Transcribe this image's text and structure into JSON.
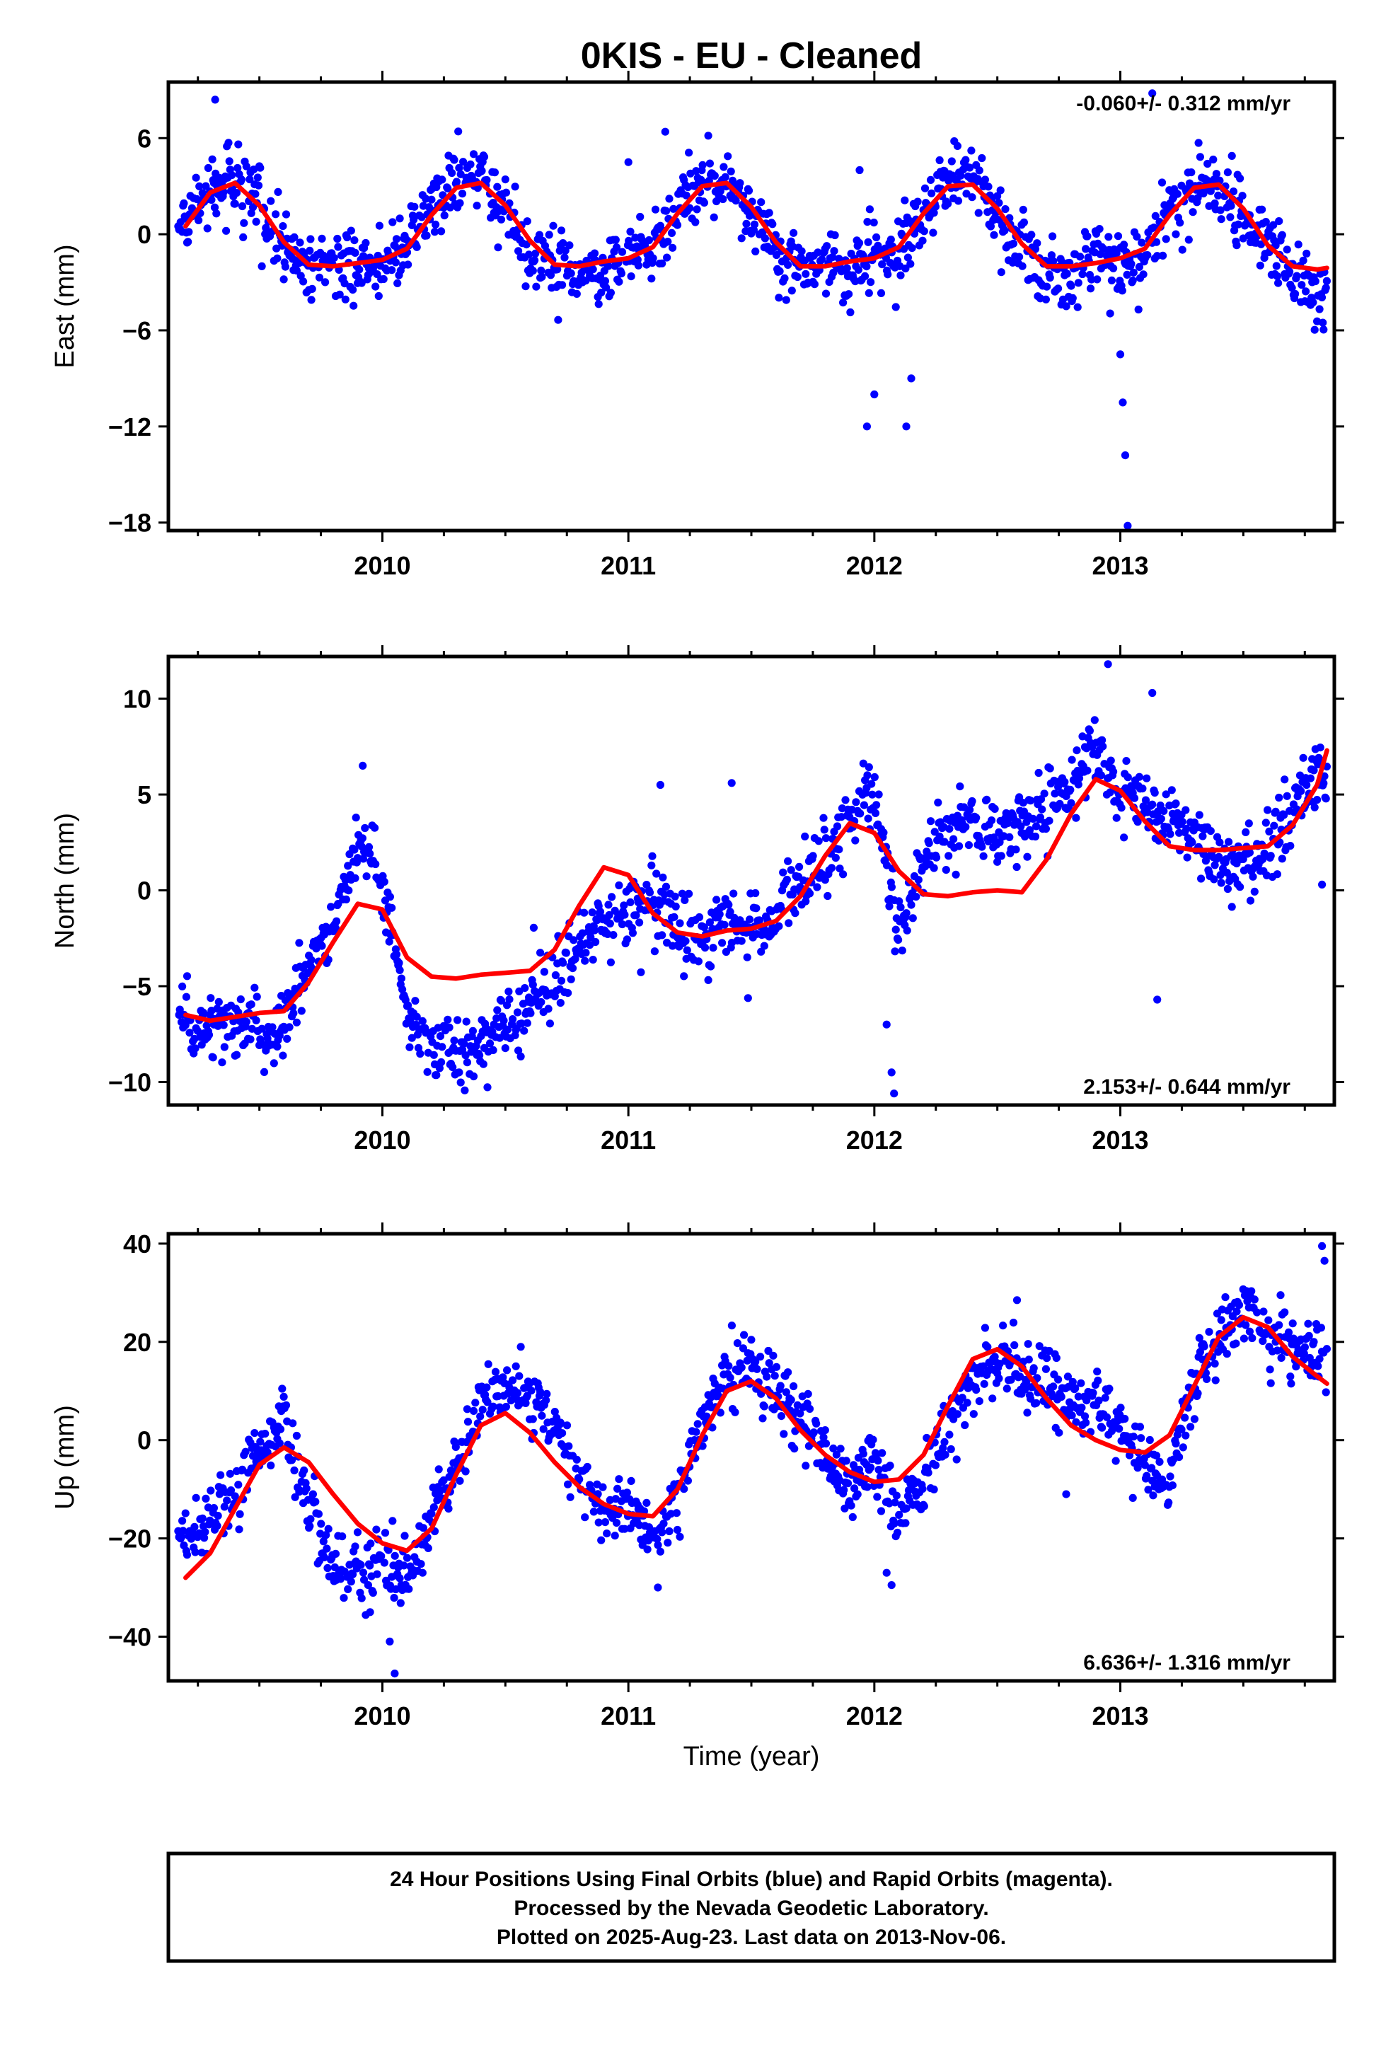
{
  "title": "0KIS  - EU - Cleaned",
  "xlabel": "Time (year)",
  "footer": {
    "line1": "24 Hour Positions Using Final Orbits (blue) and Rapid Orbits (magenta).",
    "line2": "Processed by the Nevada Geodetic Laboratory.",
    "line3": "Plotted on 2025-Aug-23. Last data on 2013-Nov-06."
  },
  "colors": {
    "data_points": "#0000ff",
    "model_fit": "#ff0000",
    "frame": "#000000"
  },
  "chart_data": [
    {
      "type": "scatter",
      "component": "east",
      "ylabel": "East (mm)",
      "xlim": [
        2009.13,
        2013.87
      ],
      "ylim": [
        -18.5,
        9.5
      ],
      "yticks": [
        -18,
        -12,
        -6,
        0,
        6
      ],
      "xticks": [
        2010,
        2011,
        2012,
        2013
      ],
      "rate_label": "-0.060+/- 0.312 mm/yr",
      "rate_label_position": "top-right",
      "series": [
        {
          "kind": "model",
          "x": [
            2009.2,
            2009.3,
            2009.4,
            2009.5,
            2009.6,
            2009.7,
            2009.8,
            2009.9,
            2010.0,
            2010.1,
            2010.2,
            2010.3,
            2010.4,
            2010.5,
            2010.6,
            2010.7,
            2010.8,
            2010.9,
            2011.0,
            2011.1,
            2011.2,
            2011.3,
            2011.4,
            2011.5,
            2011.6,
            2011.7,
            2011.8,
            2011.9,
            2012.0,
            2012.1,
            2012.2,
            2012.3,
            2012.4,
            2012.5,
            2012.6,
            2012.7,
            2012.8,
            2012.9,
            2013.0,
            2013.1,
            2013.2,
            2013.3,
            2013.4,
            2013.5,
            2013.6,
            2013.7,
            2013.8,
            2013.84
          ],
          "y": [
            0.5,
            2.6,
            3.2,
            1.8,
            -0.5,
            -1.9,
            -2.0,
            -1.8,
            -1.6,
            -0.9,
            1.2,
            2.9,
            3.2,
            1.8,
            -0.4,
            -1.9,
            -2.0,
            -1.7,
            -1.5,
            -0.8,
            1.3,
            3.0,
            3.2,
            1.7,
            -0.5,
            -2.0,
            -2.0,
            -1.7,
            -1.5,
            -0.8,
            1.3,
            3.0,
            3.1,
            1.6,
            -0.6,
            -2.0,
            -2.0,
            -1.8,
            -1.5,
            -0.9,
            1.2,
            2.9,
            3.1,
            1.6,
            -0.7,
            -2.0,
            -2.2,
            -2.1
          ]
        },
        {
          "kind": "observations",
          "x": [
            2009.2,
            2009.3,
            2009.4,
            2009.5,
            2009.6,
            2009.7,
            2009.8,
            2009.9,
            2010.0,
            2010.1,
            2010.2,
            2010.3,
            2010.4,
            2010.5,
            2010.6,
            2010.7,
            2010.8,
            2010.9,
            2011.0,
            2011.1,
            2011.2,
            2011.3,
            2011.4,
            2011.5,
            2011.6,
            2011.7,
            2011.8,
            2011.9,
            2012.0,
            2012.1,
            2012.2,
            2012.3,
            2012.4,
            2012.5,
            2012.6,
            2012.7,
            2012.8,
            2012.9,
            2013.0,
            2013.1,
            2013.2,
            2013.3,
            2013.4,
            2013.5,
            2013.6,
            2013.7,
            2013.8
          ],
          "y": [
            0.5,
            2.8,
            3.5,
            2.0,
            -0.8,
            -2.2,
            -1.5,
            -2.4,
            -2.0,
            -0.5,
            1.5,
            3.2,
            3.8,
            1.4,
            -0.8,
            -2.5,
            -1.8,
            -2.8,
            -1.2,
            -1.0,
            1.8,
            3.4,
            2.9,
            1.2,
            -1.0,
            -2.4,
            -1.6,
            -2.2,
            -1.2,
            -1.4,
            1.6,
            3.3,
            3.6,
            1.3,
            -0.9,
            -2.4,
            -2.6,
            -1.2,
            -2.0,
            -1.1,
            1.5,
            3.2,
            2.8,
            1.2,
            -0.5,
            -2.6,
            -3.6
          ],
          "outliers": {
            "x": [
              2009.32,
              2011.0,
              2011.15,
              2011.94,
              2011.97,
              2012.0,
              2012.13,
              2012.15,
              2013.0,
              2013.01,
              2013.02,
              2013.03,
              2013.13
            ],
            "y": [
              8.4,
              4.5,
              6.4,
              4.0,
              -12.0,
              -10.0,
              -12.0,
              -9.0,
              -7.5,
              -10.5,
              -13.8,
              -18.2,
              8.8
            ]
          }
        }
      ]
    },
    {
      "type": "scatter",
      "component": "north",
      "ylabel": "North (mm)",
      "xlim": [
        2009.13,
        2013.87
      ],
      "ylim": [
        -11.2,
        12.2
      ],
      "yticks": [
        -10,
        -5,
        0,
        5,
        10
      ],
      "xticks": [
        2010,
        2011,
        2012,
        2013
      ],
      "rate_label": "2.153+/- 0.644 mm/yr",
      "rate_label_position": "bottom-right",
      "series": [
        {
          "kind": "model",
          "x": [
            2009.2,
            2009.3,
            2009.4,
            2009.5,
            2009.6,
            2009.7,
            2009.8,
            2009.9,
            2010.0,
            2010.1,
            2010.2,
            2010.3,
            2010.4,
            2010.5,
            2010.6,
            2010.7,
            2010.8,
            2010.9,
            2011.0,
            2011.1,
            2011.2,
            2011.3,
            2011.4,
            2011.5,
            2011.6,
            2011.7,
            2011.8,
            2011.9,
            2012.0,
            2012.1,
            2012.2,
            2012.3,
            2012.4,
            2012.5,
            2012.6,
            2012.7,
            2012.8,
            2012.9,
            2013.0,
            2013.1,
            2013.2,
            2013.3,
            2013.4,
            2013.5,
            2013.6,
            2013.7,
            2013.8,
            2013.84
          ],
          "y": [
            -6.5,
            -6.8,
            -6.6,
            -6.4,
            -6.3,
            -4.8,
            -2.7,
            -0.7,
            -1.0,
            -3.5,
            -4.5,
            -4.6,
            -4.4,
            -4.3,
            -4.2,
            -3.1,
            -0.8,
            1.2,
            0.8,
            -1.2,
            -2.2,
            -2.4,
            -2.1,
            -2.0,
            -1.6,
            -0.3,
            1.8,
            3.5,
            3.0,
            1.0,
            -0.2,
            -0.3,
            -0.1,
            0.0,
            -0.1,
            1.6,
            4.0,
            5.8,
            5.2,
            3.6,
            2.3,
            2.1,
            2.1,
            2.2,
            2.3,
            3.4,
            5.5,
            7.3
          ]
        },
        {
          "kind": "observations",
          "x": [
            2009.2,
            2009.3,
            2009.4,
            2009.5,
            2009.6,
            2009.7,
            2009.8,
            2009.9,
            2010.0,
            2010.1,
            2010.2,
            2010.3,
            2010.4,
            2010.5,
            2010.6,
            2010.7,
            2010.8,
            2010.9,
            2011.0,
            2011.1,
            2011.2,
            2011.3,
            2011.4,
            2011.5,
            2011.6,
            2011.7,
            2011.8,
            2011.9,
            2012.0,
            2012.1,
            2012.2,
            2012.3,
            2012.4,
            2012.5,
            2012.6,
            2012.7,
            2012.8,
            2012.9,
            2013.0,
            2013.1,
            2013.2,
            2013.3,
            2013.4,
            2013.5,
            2013.6,
            2013.7,
            2013.8
          ],
          "y": [
            -7.0,
            -7.5,
            -6.8,
            -7.2,
            -6.9,
            -3.5,
            -2.0,
            2.5,
            0.5,
            -6.5,
            -7.8,
            -8.2,
            -8.0,
            -7.0,
            -6.2,
            -5.0,
            -3.2,
            -1.5,
            -1.0,
            -0.5,
            -1.8,
            -2.8,
            -1.5,
            -2.3,
            -1.0,
            0.5,
            1.5,
            3.8,
            5.0,
            -2.5,
            1.5,
            3.0,
            3.5,
            2.5,
            3.8,
            4.0,
            5.5,
            7.5,
            5.0,
            4.5,
            3.5,
            2.8,
            1.5,
            1.2,
            2.0,
            4.2,
            5.8
          ],
          "outliers": {
            "x": [
              2009.92,
              2011.13,
              2011.42,
              2012.05,
              2012.07,
              2012.08,
              2012.95,
              2013.13,
              2013.15,
              2013.82
            ],
            "y": [
              6.5,
              5.5,
              5.6,
              -7.0,
              -9.5,
              -10.6,
              11.8,
              10.3,
              -5.7,
              0.3
            ]
          }
        }
      ]
    },
    {
      "type": "scatter",
      "component": "up",
      "ylabel": "Up (mm)",
      "xlim": [
        2009.13,
        2013.87
      ],
      "ylim": [
        -49,
        42
      ],
      "yticks": [
        -40,
        -20,
        0,
        20,
        40
      ],
      "xticks": [
        2010,
        2011,
        2012,
        2013
      ],
      "rate_label": "6.636+/- 1.316 mm/yr",
      "rate_label_position": "bottom-right",
      "series": [
        {
          "kind": "model",
          "x": [
            2009.2,
            2009.3,
            2009.4,
            2009.5,
            2009.6,
            2009.7,
            2009.8,
            2009.9,
            2010.0,
            2010.1,
            2010.2,
            2010.3,
            2010.4,
            2010.5,
            2010.6,
            2010.7,
            2010.8,
            2010.9,
            2011.0,
            2011.1,
            2011.2,
            2011.3,
            2011.4,
            2011.5,
            2011.6,
            2011.7,
            2011.8,
            2011.9,
            2012.0,
            2012.1,
            2012.2,
            2012.3,
            2012.4,
            2012.5,
            2012.6,
            2012.7,
            2012.8,
            2012.9,
            2013.0,
            2013.1,
            2013.2,
            2013.3,
            2013.4,
            2013.5,
            2013.6,
            2013.7,
            2013.8,
            2013.84
          ],
          "y": [
            -28.0,
            -23.0,
            -14.0,
            -5.0,
            -1.5,
            -4.5,
            -11.0,
            -17.0,
            -21.0,
            -22.5,
            -18.0,
            -7.0,
            3.0,
            5.5,
            1.5,
            -4.5,
            -9.5,
            -13.0,
            -15.0,
            -15.5,
            -10.0,
            1.0,
            10.0,
            12.0,
            8.5,
            2.0,
            -3.0,
            -6.5,
            -8.5,
            -8.0,
            -3.0,
            7.0,
            16.5,
            18.5,
            15.0,
            8.5,
            3.0,
            0.0,
            -2.0,
            -2.5,
            1.0,
            11.0,
            21.0,
            25.0,
            23.0,
            17.0,
            13.0,
            11.5
          ]
        },
        {
          "kind": "observations",
          "x": [
            2009.2,
            2009.3,
            2009.4,
            2009.5,
            2009.6,
            2009.7,
            2009.8,
            2009.9,
            2010.0,
            2010.1,
            2010.2,
            2010.3,
            2010.4,
            2010.5,
            2010.6,
            2010.7,
            2010.8,
            2010.9,
            2011.0,
            2011.1,
            2011.2,
            2011.3,
            2011.4,
            2011.5,
            2011.6,
            2011.7,
            2011.8,
            2011.9,
            2012.0,
            2012.1,
            2012.2,
            2012.3,
            2012.4,
            2012.5,
            2012.6,
            2012.7,
            2012.8,
            2012.9,
            2013.0,
            2013.1,
            2013.2,
            2013.3,
            2013.4,
            2013.5,
            2013.6,
            2013.7,
            2013.8
          ],
          "y": [
            -20.0,
            -16.0,
            -10.0,
            -3.0,
            4.0,
            -12.0,
            -26.0,
            -28.0,
            -25.0,
            -30.0,
            -15.0,
            -5.0,
            8.0,
            12.0,
            8.0,
            3.0,
            -8.0,
            -14.0,
            -12.0,
            -20.0,
            -12.0,
            3.0,
            14.0,
            15.0,
            9.0,
            4.0,
            -4.0,
            -10.0,
            -5.0,
            -15.0,
            -8.0,
            5.0,
            12.0,
            17.0,
            11.0,
            12.0,
            6.0,
            9.0,
            3.0,
            -5.0,
            -8.0,
            13.0,
            20.0,
            27.0,
            22.0,
            20.0,
            16.0
          ],
          "outliers": {
            "x": [
              2009.95,
              2010.03,
              2010.05,
              2011.12,
              2012.05,
              2012.07,
              2012.58,
              2012.78,
              2013.82,
              2013.83
            ],
            "y": [
              -35.0,
              -41.0,
              -47.5,
              -30.0,
              -27.0,
              -29.5,
              28.5,
              -11.0,
              39.5,
              36.5
            ]
          }
        }
      ]
    }
  ]
}
